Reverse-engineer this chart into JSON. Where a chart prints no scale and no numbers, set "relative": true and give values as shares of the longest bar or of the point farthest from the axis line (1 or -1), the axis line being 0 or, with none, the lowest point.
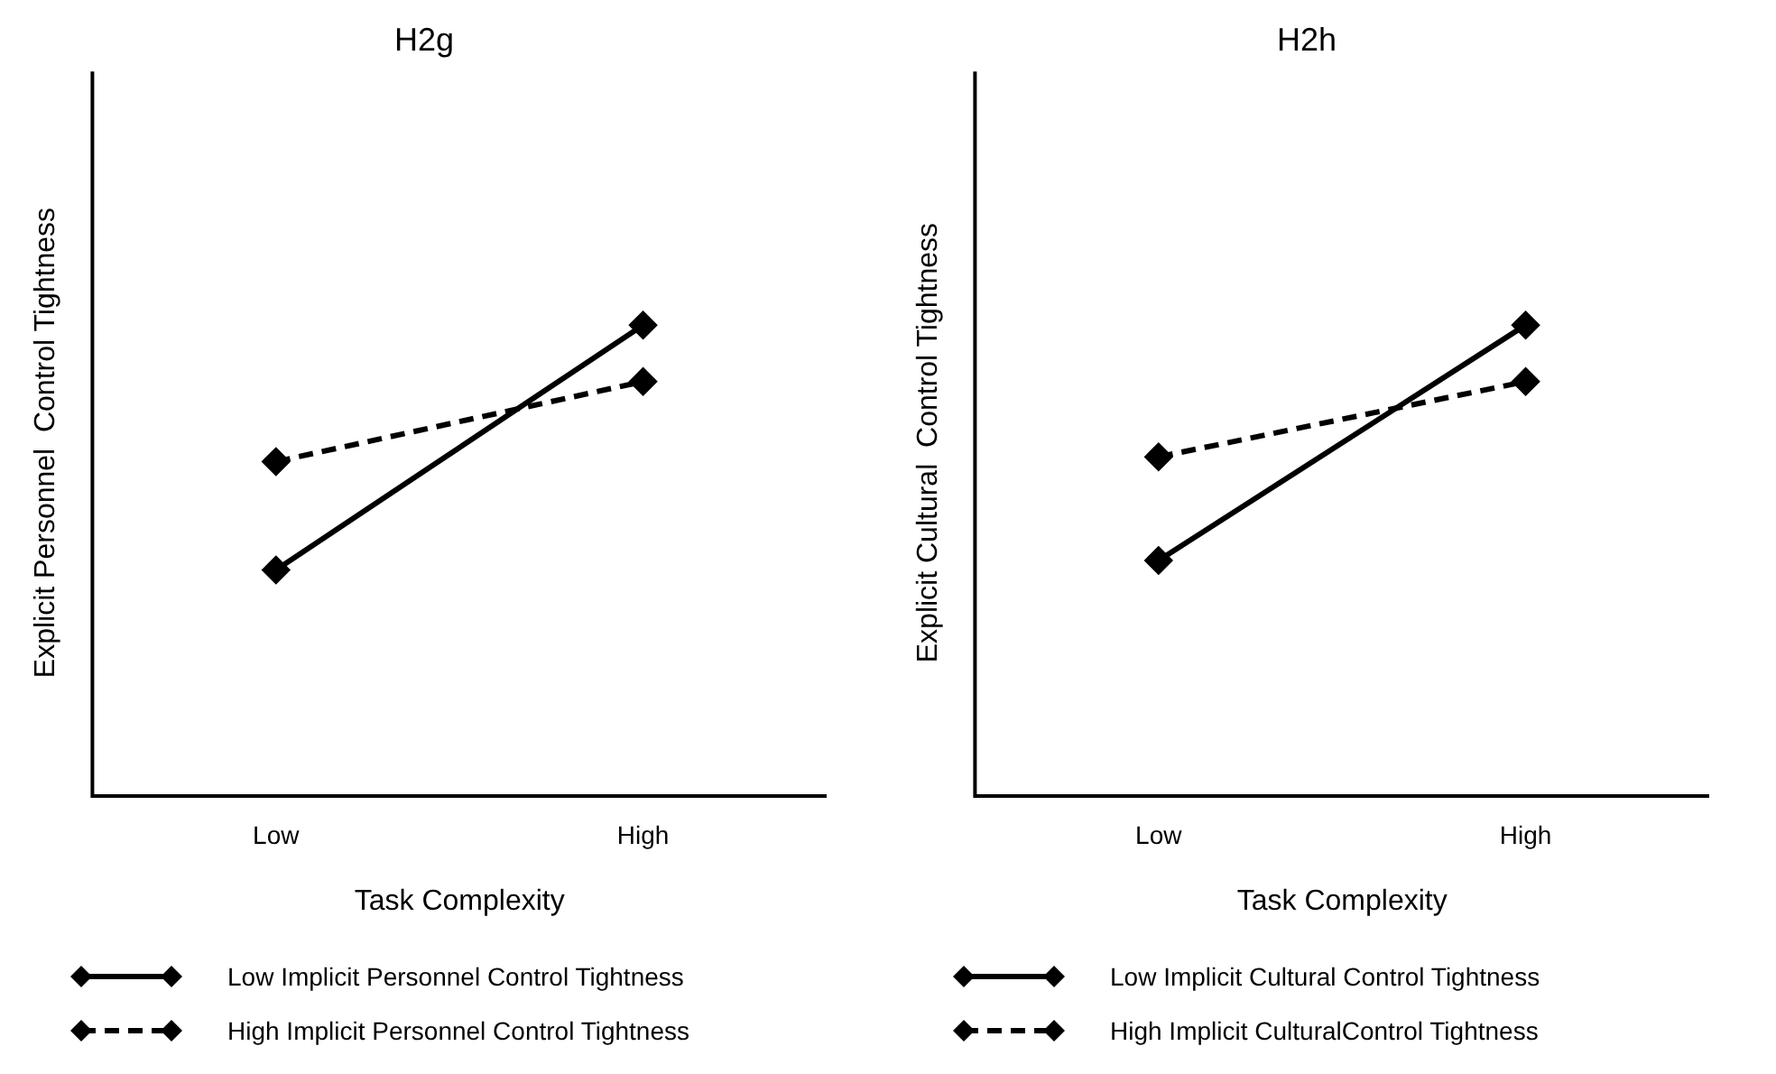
{
  "chart_data": [
    {
      "type": "line",
      "title": "H2g",
      "xlabel": "Task Complexity",
      "ylabel": "Explicit Personnel  Control Tightness",
      "categories": [
        "Low",
        "High"
      ],
      "relative": true,
      "marker": "diamond",
      "legend": "bottom",
      "grid": false,
      "series": [
        {
          "name": "Low Implicit Personnel Control Tightness",
          "color": "#000000",
          "line_style": "solid",
          "values": [
            0.48,
            1
          ]
        },
        {
          "name": "High Implicit Personnel Control Tightness",
          "color": "#000000",
          "line_style": "dashed",
          "values": [
            0.71,
            0.88
          ]
        }
      ]
    },
    {
      "type": "line",
      "title": "H2h",
      "xlabel": "Task Complexity",
      "ylabel": "Explicit Cultural  Control Tightness",
      "categories": [
        "Low",
        "High"
      ],
      "relative": true,
      "marker": "diamond",
      "legend": "bottom",
      "grid": false,
      "series": [
        {
          "name": "Low Implicit Cultural Control Tightness",
          "color": "#000000",
          "line_style": "solid",
          "values": [
            0.5,
            1
          ]
        },
        {
          "name": "High Implicit CulturalControl Tightness",
          "color": "#000000",
          "line_style": "dashed",
          "values": [
            0.72,
            0.88
          ]
        }
      ]
    }
  ]
}
